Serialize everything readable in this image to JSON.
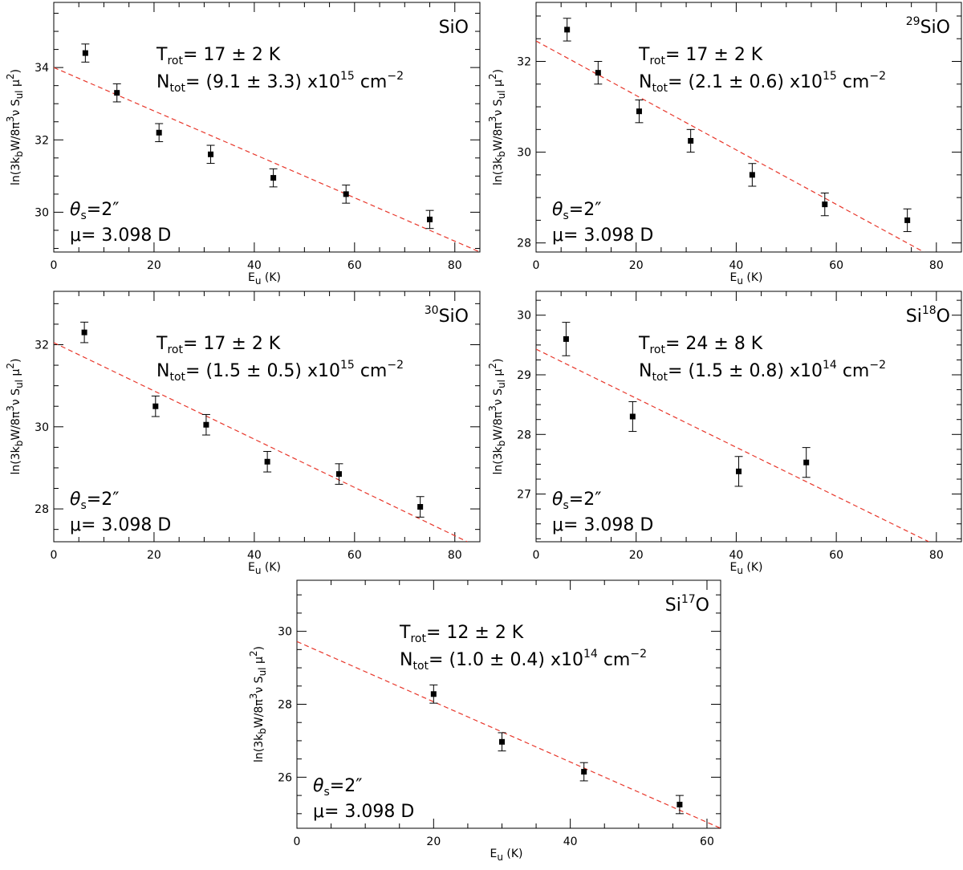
{
  "figure": {
    "shared": {
      "xlabel_main": "E",
      "xlabel_sub": "u",
      "xlabel_unit": "(K)",
      "ylabel_lead": "ln(3k",
      "ylabel_b": "b",
      "ylabel_mid": "W/8π",
      "ylabel_cube": "3",
      "ylabel_nu": "ν S",
      "ylabel_ul": "ul",
      "ylabel_mu": " μ",
      "ylabel_sq": "2",
      "ylabel_close": ")",
      "theta_sym": "θ",
      "theta_sub": "s",
      "theta_value": "=2″",
      "mu_text": "μ= 3.098 D",
      "trot_main": "T",
      "trot_sub": "rot",
      "ntot_main": "N",
      "ntot_sub": "tot",
      "unit_text": "cm",
      "unit_exp": "−2",
      "pm": "±",
      "times10": "x10",
      "kelvin": "K"
    }
  },
  "chart_data": [
    {
      "type": "scatter",
      "species_pre": "",
      "species_iso": "",
      "species_post": "SiO",
      "trot_value": "17",
      "trot_err": "2",
      "ntot_value": "9.1",
      "ntot_err": "3.3",
      "ntot_exp": "15",
      "xlim": [
        0,
        85
      ],
      "ylim": [
        28.9,
        35.8
      ],
      "xticks": [
        0,
        20,
        40,
        60,
        80
      ],
      "yticks": [
        30,
        32,
        34
      ],
      "points": [
        {
          "x": 6.3,
          "y": 34.4,
          "err": 0.25
        },
        {
          "x": 12.6,
          "y": 33.3,
          "err": 0.25
        },
        {
          "x": 21.0,
          "y": 32.2,
          "err": 0.25
        },
        {
          "x": 31.3,
          "y": 31.6,
          "err": 0.25
        },
        {
          "x": 43.8,
          "y": 30.95,
          "err": 0.25
        },
        {
          "x": 58.3,
          "y": 30.5,
          "err": 0.25
        },
        {
          "x": 75.0,
          "y": 29.8,
          "err": 0.25
        }
      ],
      "fit": {
        "x0": 0,
        "y0": 34.0,
        "x1": 85,
        "y1": 28.9
      }
    },
    {
      "type": "scatter",
      "species_pre": "",
      "species_iso": "29",
      "species_post": "SiO",
      "trot_value": "17",
      "trot_err": "2",
      "ntot_value": "2.1",
      "ntot_err": "0.6",
      "ntot_exp": "15",
      "xlim": [
        0,
        85
      ],
      "ylim": [
        27.8,
        33.3
      ],
      "xticks": [
        0,
        20,
        40,
        60,
        80
      ],
      "yticks": [
        28,
        30,
        32
      ],
      "points": [
        {
          "x": 6.2,
          "y": 32.7,
          "err": 0.25
        },
        {
          "x": 12.4,
          "y": 31.75,
          "err": 0.25
        },
        {
          "x": 20.6,
          "y": 30.9,
          "err": 0.25
        },
        {
          "x": 30.9,
          "y": 30.25,
          "err": 0.25
        },
        {
          "x": 43.2,
          "y": 29.5,
          "err": 0.25
        },
        {
          "x": 57.7,
          "y": 28.85,
          "err": 0.25
        },
        {
          "x": 74.2,
          "y": 28.5,
          "err": 0.25
        }
      ],
      "fit": {
        "x0": 0,
        "y0": 32.45,
        "x1": 77.5,
        "y1": 27.8
      }
    },
    {
      "type": "scatter",
      "species_pre": "",
      "species_iso": "30",
      "species_post": "SiO",
      "trot_value": "17",
      "trot_err": "2",
      "ntot_value": "1.5",
      "ntot_err": "0.5",
      "ntot_exp": "15",
      "xlim": [
        0,
        85
      ],
      "ylim": [
        27.2,
        33.3
      ],
      "xticks": [
        0,
        20,
        40,
        60,
        80
      ],
      "yticks": [
        28,
        30,
        32
      ],
      "points": [
        {
          "x": 6.1,
          "y": 32.3,
          "err": 0.25
        },
        {
          "x": 20.3,
          "y": 30.5,
          "err": 0.25
        },
        {
          "x": 30.4,
          "y": 30.05,
          "err": 0.25
        },
        {
          "x": 42.6,
          "y": 29.15,
          "err": 0.25
        },
        {
          "x": 56.9,
          "y": 28.85,
          "err": 0.25
        },
        {
          "x": 73.1,
          "y": 28.05,
          "err": 0.25
        }
      ],
      "fit": {
        "x0": 0,
        "y0": 32.05,
        "x1": 82.5,
        "y1": 27.2
      }
    },
    {
      "type": "scatter",
      "species_pre": "Si",
      "species_iso": "18",
      "species_post": "O",
      "trot_value": "24",
      "trot_err": "8",
      "ntot_value": "1.5",
      "ntot_err": "0.8",
      "ntot_exp": "14",
      "xlim": [
        0,
        85
      ],
      "ylim": [
        26.2,
        30.4
      ],
      "xticks": [
        0,
        20,
        40,
        60,
        80
      ],
      "yticks": [
        27,
        28,
        29,
        30
      ],
      "points": [
        {
          "x": 6.0,
          "y": 29.6,
          "err": 0.28
        },
        {
          "x": 19.3,
          "y": 28.3,
          "err": 0.25
        },
        {
          "x": 40.5,
          "y": 27.38,
          "err": 0.25
        },
        {
          "x": 54.0,
          "y": 27.53,
          "err": 0.25
        }
      ],
      "fit": {
        "x0": 0,
        "y0": 29.43,
        "x1": 78.5,
        "y1": 26.2
      }
    },
    {
      "type": "scatter",
      "species_pre": "Si",
      "species_iso": "17",
      "species_post": "O",
      "trot_value": "12",
      "trot_err": "2",
      "ntot_value": "1.0",
      "ntot_err": "0.4",
      "ntot_exp": "14",
      "xlim": [
        0,
        62
      ],
      "ylim": [
        24.6,
        31.4
      ],
      "xticks": [
        0,
        20,
        40,
        60
      ],
      "yticks": [
        26,
        28,
        30
      ],
      "points": [
        {
          "x": 20.0,
          "y": 28.28,
          "err": 0.25
        },
        {
          "x": 30.0,
          "y": 26.97,
          "err": 0.25
        },
        {
          "x": 42.0,
          "y": 26.15,
          "err": 0.25
        },
        {
          "x": 56.0,
          "y": 25.25,
          "err": 0.25
        }
      ],
      "fit": {
        "x0": 0,
        "y0": 29.72,
        "x1": 62,
        "y1": 24.6
      }
    }
  ]
}
